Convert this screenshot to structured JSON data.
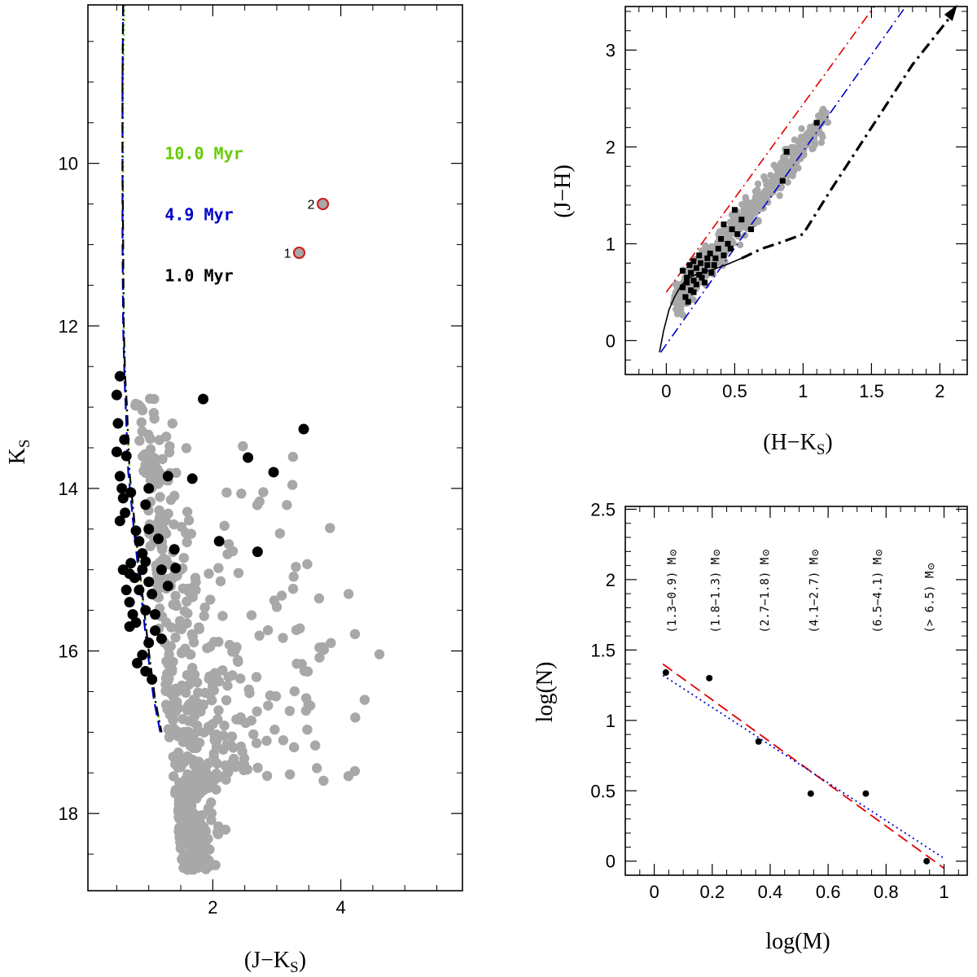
{
  "colors": {
    "background": "#ffffff",
    "field": "#a8a8a8",
    "members": "#000000",
    "ysos_edge": "#d02020",
    "ysos_fill": "#a8a8a8",
    "iso_10myr": "#66cc00",
    "iso_4p9myr": "#0000cc",
    "iso_1myr": "#000000",
    "reddening_upper": "#e00000",
    "reddening_lower": "#0000cc",
    "fit_red": "#e00000",
    "fit_blue": "#0000cc"
  },
  "chart_data": [
    {
      "id": "cmd",
      "type": "scatter",
      "xlabel": "(J−K",
      "xlabel_sub": "S",
      "xlabel_close": ")",
      "ylabel": "K",
      "ylabel_sub": "S",
      "xlim": [
        0.05,
        5.9
      ],
      "ylim": [
        18.95,
        8.05
      ],
      "y_inverted": true,
      "xticks_labeled": [
        2,
        4
      ],
      "yticks_labeled": [
        10,
        12,
        14,
        16,
        18
      ],
      "annotations": [
        {
          "text": "10.0 Myr",
          "color_key": "iso_10myr",
          "x": 1.25,
          "y": 9.95
        },
        {
          "text": "4.9 Myr",
          "color_key": "iso_4p9myr",
          "x": 1.25,
          "y": 10.7
        },
        {
          "text": "1.0 Myr",
          "color_key": "iso_1myr",
          "x": 1.25,
          "y": 11.45
        }
      ],
      "isochrones": [
        {
          "name": "10.0 Myr",
          "style": "dotted",
          "color_key": "iso_10myr",
          "x": [
            0.62,
            0.6,
            0.6,
            0.6,
            0.61,
            0.63,
            0.65,
            0.7,
            0.8,
            0.9,
            1.0,
            1.1,
            1.2
          ],
          "y": [
            8.05,
            9.0,
            10.0,
            11.0,
            12.0,
            12.6,
            13.0,
            13.8,
            14.6,
            15.3,
            16.0,
            16.6,
            17.0
          ]
        },
        {
          "name": "4.9 Myr",
          "style": "dashed",
          "color_key": "iso_4p9myr",
          "x": [
            0.6,
            0.59,
            0.59,
            0.59,
            0.6,
            0.62,
            0.64,
            0.68,
            0.78,
            0.88,
            0.98,
            1.08,
            1.18
          ],
          "y": [
            8.05,
            9.0,
            10.0,
            11.0,
            12.0,
            12.6,
            13.0,
            13.8,
            14.6,
            15.3,
            16.0,
            16.6,
            17.0
          ]
        },
        {
          "name": "1.0 Myr",
          "style": "dashdot",
          "color_key": "iso_1myr",
          "x": [
            0.6,
            0.59,
            0.59,
            0.6,
            0.61,
            0.63,
            0.66,
            0.7,
            0.8,
            0.9,
            1.0,
            1.1,
            1.2
          ],
          "y": [
            8.05,
            9.0,
            10.0,
            11.0,
            12.0,
            12.6,
            13.0,
            13.8,
            14.6,
            15.3,
            16.0,
            16.6,
            17.0
          ]
        }
      ],
      "members": [
        [
          0.5,
          12.85
        ],
        [
          0.55,
          12.62
        ],
        [
          0.52,
          13.2
        ],
        [
          0.5,
          13.55
        ],
        [
          0.62,
          13.4
        ],
        [
          0.65,
          13.6
        ],
        [
          0.55,
          13.85
        ],
        [
          0.58,
          14.0
        ],
        [
          0.6,
          14.12
        ],
        [
          0.72,
          14.05
        ],
        [
          0.63,
          14.3
        ],
        [
          0.55,
          14.4
        ],
        [
          0.8,
          14.52
        ],
        [
          0.85,
          14.65
        ],
        [
          0.9,
          14.8
        ],
        [
          1.0,
          14.5
        ],
        [
          1.15,
          14.62
        ],
        [
          0.95,
          14.9
        ],
        [
          0.72,
          14.92
        ],
        [
          0.7,
          15.05
        ],
        [
          0.78,
          15.1
        ],
        [
          0.9,
          15.0
        ],
        [
          1.0,
          15.15
        ],
        [
          1.05,
          15.3
        ],
        [
          0.85,
          15.25
        ],
        [
          0.7,
          15.4
        ],
        [
          0.75,
          15.55
        ],
        [
          0.8,
          15.65
        ],
        [
          0.95,
          15.5
        ],
        [
          1.1,
          15.75
        ],
        [
          1.0,
          15.9
        ],
        [
          0.9,
          16.05
        ],
        [
          0.82,
          16.15
        ],
        [
          0.95,
          16.25
        ],
        [
          1.05,
          16.35
        ],
        [
          0.7,
          15.7
        ],
        [
          1.2,
          15.0
        ],
        [
          1.3,
          15.2
        ],
        [
          1.4,
          14.75
        ],
        [
          1.42,
          14.98
        ],
        [
          1.0,
          14.0
        ],
        [
          0.95,
          14.2
        ],
        [
          1.3,
          13.85
        ],
        [
          1.68,
          13.88
        ],
        [
          1.85,
          12.9
        ],
        [
          2.1,
          14.65
        ],
        [
          2.55,
          13.62
        ],
        [
          2.7,
          14.78
        ],
        [
          2.95,
          13.8
        ],
        [
          3.42,
          13.27
        ],
        [
          1.1,
          15.55
        ],
        [
          1.2,
          15.85
        ],
        [
          0.6,
          15.0
        ],
        [
          0.65,
          15.25
        ]
      ],
      "ysos": [
        {
          "label": "1",
          "x": 3.35,
          "y": 11.1
        },
        {
          "label": "2",
          "x": 3.72,
          "y": 10.5
        }
      ]
    },
    {
      "id": "ccd",
      "type": "scatter",
      "xlabel": "(H−K",
      "xlabel_sub": "S",
      "xlabel_close": ")",
      "ylabel": "(J−H)",
      "xlim": [
        -0.3,
        2.2
      ],
      "ylim": [
        -0.35,
        3.45
      ],
      "xticks_labeled": [
        0,
        0.5,
        1,
        1.5,
        2
      ],
      "xtick_labels": [
        "0",
        "0.5",
        "1",
        "1.5",
        "2"
      ],
      "yticks_labeled": [
        0,
        1,
        2,
        3
      ],
      "ytick_labels": [
        "0",
        "1",
        "2",
        "3"
      ],
      "reddening_lines": [
        {
          "style": "dashdot",
          "color_key": "reddening_upper",
          "x": [
            0.0,
            1.52
          ],
          "y": [
            0.5,
            3.45
          ]
        },
        {
          "style": "dashdot",
          "color_key": "reddening_lower",
          "x": [
            -0.04,
            1.75
          ],
          "y": [
            -0.12,
            3.45
          ]
        }
      ],
      "main_sequence": {
        "x": [
          -0.05,
          -0.02,
          0.02,
          0.06,
          0.1,
          0.14,
          0.18,
          0.25,
          0.35,
          0.45,
          0.55
        ],
        "y": [
          -0.12,
          0.1,
          0.32,
          0.45,
          0.55,
          0.62,
          0.66,
          0.7,
          0.74,
          0.79,
          0.85
        ]
      },
      "giant_branch": {
        "x": [
          0.55,
          0.7,
          0.85,
          1.0,
          1.2,
          1.5,
          1.8,
          2.08
        ],
        "y": [
          0.85,
          0.95,
          1.02,
          1.1,
          1.55,
          2.2,
          2.85,
          3.35
        ]
      },
      "members": [
        [
          0.12,
          0.55
        ],
        [
          0.15,
          0.6
        ],
        [
          0.18,
          0.7
        ],
        [
          0.2,
          0.62
        ],
        [
          0.22,
          0.75
        ],
        [
          0.25,
          0.8
        ],
        [
          0.14,
          0.45
        ],
        [
          0.16,
          0.4
        ],
        [
          0.18,
          0.52
        ],
        [
          0.22,
          0.58
        ],
        [
          0.24,
          0.68
        ],
        [
          0.28,
          0.72
        ],
        [
          0.3,
          0.85
        ],
        [
          0.32,
          0.9
        ],
        [
          0.35,
          0.78
        ],
        [
          0.38,
          0.95
        ],
        [
          0.4,
          1.05
        ],
        [
          0.42,
          0.88
        ],
        [
          0.45,
          1.0
        ],
        [
          0.48,
          1.15
        ],
        [
          0.5,
          1.35
        ],
        [
          0.52,
          1.1
        ],
        [
          0.55,
          1.25
        ],
        [
          0.2,
          0.82
        ],
        [
          0.26,
          0.65
        ],
        [
          0.33,
          0.7
        ],
        [
          0.15,
          0.65
        ],
        [
          0.12,
          0.72
        ],
        [
          0.28,
          0.6
        ],
        [
          0.36,
          0.85
        ],
        [
          0.42,
          1.2
        ],
        [
          0.47,
          0.95
        ],
        [
          0.85,
          1.65
        ],
        [
          0.88,
          1.95
        ],
        [
          1.1,
          2.25
        ],
        [
          0.62,
          1.15
        ],
        [
          0.2,
          0.5
        ],
        [
          0.17,
          0.78
        ],
        [
          0.3,
          0.78
        ],
        [
          0.24,
          0.88
        ]
      ]
    },
    {
      "id": "mf",
      "type": "scatter",
      "xlabel": "log(M)",
      "ylabel": "log(N)",
      "xlim": [
        -0.1,
        1.08
      ],
      "ylim": [
        -0.1,
        2.52
      ],
      "xticks_labeled": [
        0,
        0.2,
        0.4,
        0.6,
        0.8,
        1
      ],
      "xtick_labels": [
        "0",
        "0.2",
        "0.4",
        "0.6",
        "0.8",
        "1"
      ],
      "yticks_labeled": [
        0,
        0.5,
        1,
        1.5,
        2,
        2.5
      ],
      "ytick_labels": [
        "0",
        "0.5",
        "1",
        "1.5",
        "2",
        "2.5"
      ],
      "points": [
        {
          "x": 0.04,
          "y": 1.34
        },
        {
          "x": 0.19,
          "y": 1.3
        },
        {
          "x": 0.36,
          "y": 0.85
        },
        {
          "x": 0.54,
          "y": 0.48
        },
        {
          "x": 0.73,
          "y": 0.48
        },
        {
          "x": 0.94,
          "y": 0.0
        }
      ],
      "fits": [
        {
          "style": "dashed",
          "color_key": "fit_red",
          "x": [
            0.03,
            1.0
          ],
          "y": [
            1.4,
            -0.05
          ]
        },
        {
          "style": "dotted",
          "color_key": "fit_blue",
          "x": [
            0.03,
            1.0
          ],
          "y": [
            1.32,
            0.02
          ]
        }
      ],
      "mass_bins": [
        {
          "text": "(1.3−0.9) M",
          "x": 0.06
        },
        {
          "text": "(1.8−1.3) M",
          "x": 0.21
        },
        {
          "text": "(2.7−1.8) M",
          "x": 0.38
        },
        {
          "text": "(4.1−2.7) M",
          "x": 0.55
        },
        {
          "text": "(6.5−4.1) M",
          "x": 0.77
        },
        {
          "text": "(> 6.5) M",
          "x": 0.95
        }
      ],
      "mass_bin_y": 1.62
    }
  ]
}
